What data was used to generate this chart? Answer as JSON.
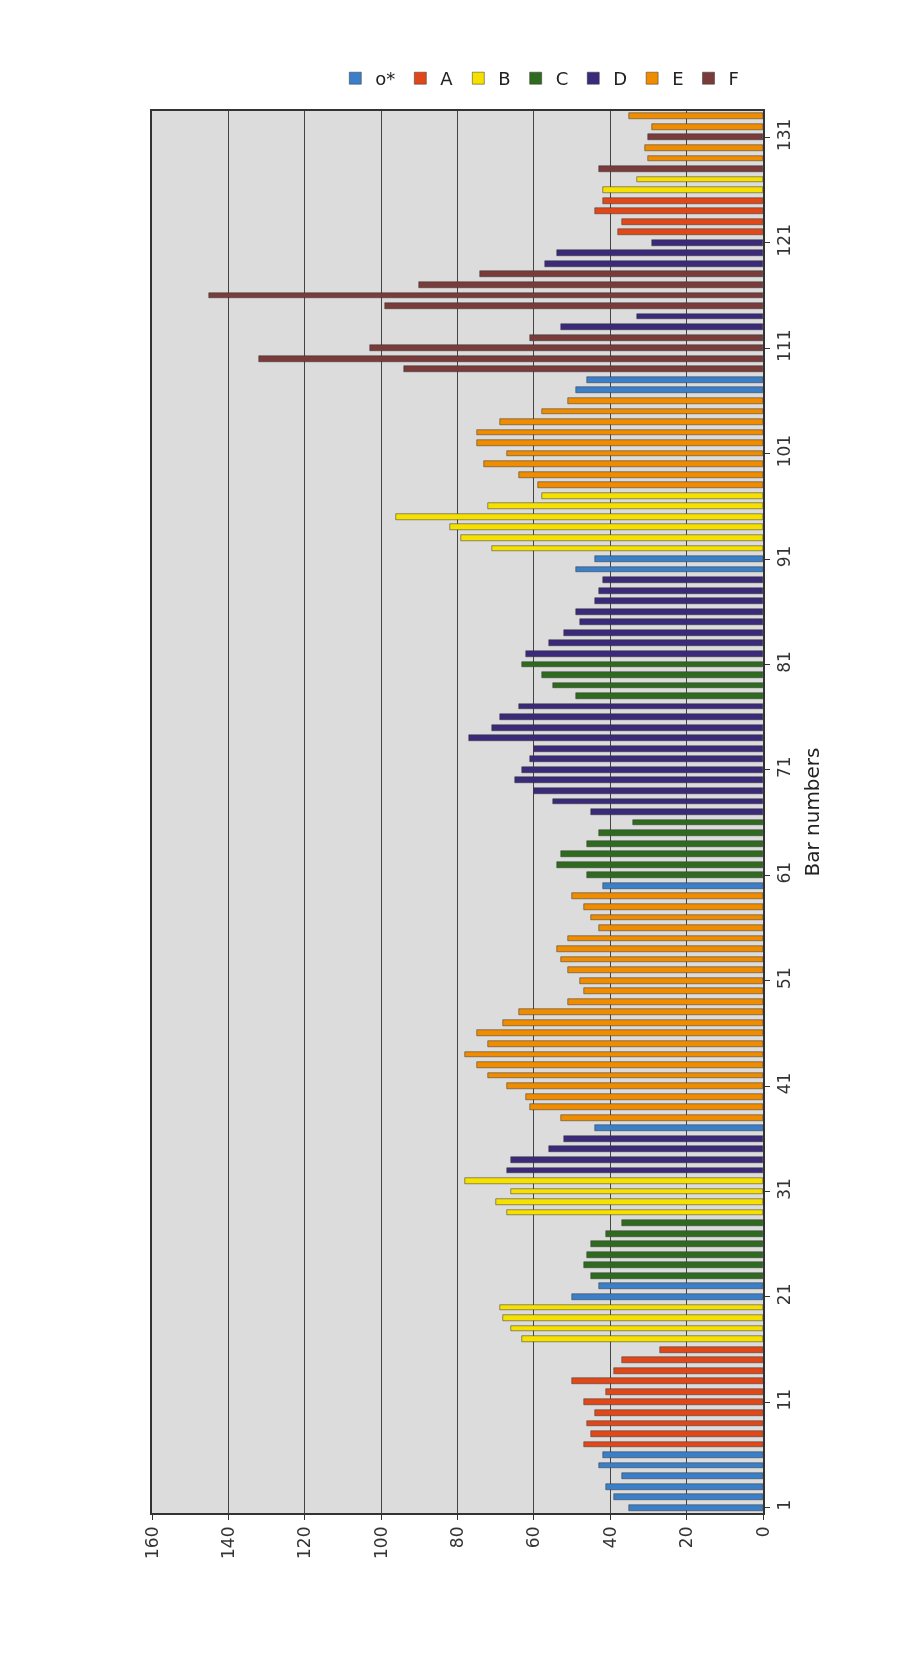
{
  "chart_data": {
    "type": "bar",
    "orientation": "horizontal",
    "ylabel": "Bar numbers",
    "xlim": [
      160,
      0
    ],
    "xticks": [
      0,
      20,
      40,
      60,
      80,
      100,
      120,
      140,
      160
    ],
    "ylim": [
      0.5,
      133.5
    ],
    "yticks": [
      1,
      11,
      21,
      31,
      41,
      51,
      61,
      71,
      81,
      91,
      101,
      111,
      121,
      131
    ],
    "grid": "x",
    "legend": "top",
    "series": [
      {
        "name": "o*",
        "color": "#3a7fc8",
        "x": [
          1,
          2,
          3,
          4,
          5,
          6,
          21,
          22,
          37,
          60,
          90,
          91,
          107,
          108
        ],
        "values": [
          35,
          39,
          41,
          37,
          43,
          42,
          50,
          43,
          44,
          42,
          49,
          44,
          49,
          46
        ]
      },
      {
        "name": "A",
        "color": "#e0481a",
        "x": [
          7,
          8,
          9,
          10,
          11,
          12,
          13,
          14,
          15,
          16,
          122,
          123,
          124,
          125
        ],
        "values": [
          47,
          45,
          46,
          44,
          47,
          41,
          50,
          39,
          37,
          27,
          38,
          37,
          44,
          42
        ]
      },
      {
        "name": "B",
        "color": "#f5e000",
        "x": [
          17,
          18,
          19,
          20,
          29,
          30,
          31,
          32,
          92,
          93,
          94,
          95,
          96,
          97,
          126,
          127
        ],
        "values": [
          63,
          66,
          68,
          69,
          67,
          70,
          66,
          78,
          71,
          79,
          82,
          96,
          72,
          58,
          42,
          33
        ]
      },
      {
        "name": "C",
        "color": "#2e6b1e",
        "x": [
          23,
          24,
          25,
          26,
          27,
          28,
          61,
          62,
          63,
          64,
          65,
          66,
          78,
          79,
          80,
          81
        ],
        "values": [
          45,
          47,
          46,
          45,
          41,
          37,
          46,
          54,
          53,
          46,
          43,
          34,
          49,
          55,
          58,
          63
        ]
      },
      {
        "name": "D",
        "color": "#3b2a7a",
        "x": [
          33,
          34,
          35,
          36,
          67,
          68,
          69,
          70,
          71,
          72,
          73,
          74,
          75,
          76,
          77,
          82,
          83,
          84,
          85,
          86,
          87,
          88,
          89,
          113,
          114,
          119,
          120,
          121
        ],
        "values": [
          67,
          66,
          56,
          52,
          45,
          55,
          60,
          65,
          63,
          61,
          60,
          77,
          71,
          69,
          64,
          62,
          56,
          52,
          48,
          49,
          44,
          43,
          42,
          53,
          33,
          57,
          54,
          29
        ]
      },
      {
        "name": "E",
        "color": "#f08c00",
        "x": [
          38,
          39,
          40,
          41,
          42,
          43,
          44,
          45,
          46,
          47,
          48,
          49,
          50,
          51,
          52,
          53,
          54,
          55,
          56,
          57,
          58,
          59,
          98,
          99,
          100,
          101,
          102,
          103,
          104,
          105,
          106,
          129,
          130,
          132,
          133
        ],
        "values": [
          53,
          61,
          62,
          67,
          72,
          75,
          78,
          72,
          75,
          68,
          64,
          51,
          47,
          48,
          51,
          53,
          54,
          51,
          43,
          45,
          47,
          50,
          59,
          64,
          73,
          67,
          75,
          75,
          69,
          58,
          51,
          30,
          31,
          29,
          35
        ]
      },
      {
        "name": "F",
        "color": "#7a3b3b",
        "x": [
          109,
          110,
          111,
          112,
          115,
          116,
          117,
          118,
          128,
          131
        ],
        "values": [
          94,
          132,
          103,
          61,
          99,
          145,
          90,
          74,
          43,
          30
        ]
      }
    ]
  }
}
